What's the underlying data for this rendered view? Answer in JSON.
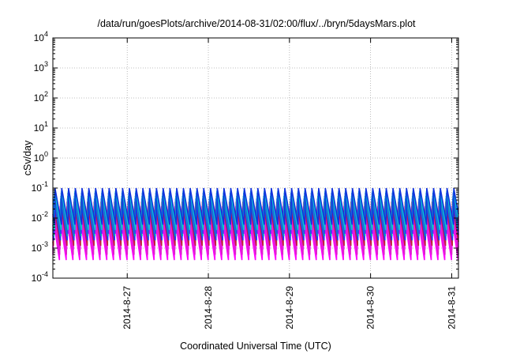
{
  "chart_data": {
    "type": "line",
    "title": "/data/run/goesPlots/archive/2014-08-31/02:00/flux/../bryn/5daysMars.plot",
    "xlabel": "Coordinated Universal Time (UTC)",
    "ylabel": "cSv/day",
    "yscale": "log",
    "ylim": [
      0.0001,
      10000
    ],
    "xlim": [
      "2014-08-26 02:00",
      "2014-08-31 02:00"
    ],
    "grid": true,
    "legend": "none",
    "y_ticks": [
      {
        "base": "10",
        "exp": "-4"
      },
      {
        "base": "10",
        "exp": "-3"
      },
      {
        "base": "10",
        "exp": "-2"
      },
      {
        "base": "10",
        "exp": "-1"
      },
      {
        "base": "10",
        "exp": "0"
      },
      {
        "base": "10",
        "exp": "1"
      },
      {
        "base": "10",
        "exp": "2"
      },
      {
        "base": "10",
        "exp": "3"
      },
      {
        "base": "10",
        "exp": "4"
      }
    ],
    "x_ticks": [
      "2014-8-27",
      "2014-8-28",
      "2014-8-29",
      "2014-8-30",
      "2014-8-31"
    ],
    "x_tick_times": [
      "2014-08-27 00:00",
      "2014-08-28 00:00",
      "2014-08-29 00:00",
      "2014-08-30 00:00",
      "2014-08-31 00:00"
    ],
    "sawtooth_period_hours": 2,
    "series": [
      {
        "color": "#ff00ff",
        "peak": 0.012,
        "trough": 0.0004
      },
      {
        "color": "#dd22cc",
        "peak": 0.018,
        "trough": 0.0006
      },
      {
        "color": "#ee11ee",
        "peak": 0.025,
        "trough": 0.0009
      },
      {
        "color": "#c0203a",
        "peak": 0.035,
        "trough": 0.0012
      },
      {
        "color": "#2233ff",
        "peak": 0.045,
        "trough": 0.0018
      },
      {
        "color": "#00aaaa",
        "peak": 0.055,
        "trough": 0.0025
      },
      {
        "color": "#3344ee",
        "peak": 0.07,
        "trough": 0.003
      },
      {
        "color": "#00cccc",
        "peak": 0.08,
        "trough": 0.004
      },
      {
        "color": "#1133dd",
        "peak": 0.1,
        "trough": 0.006
      }
    ]
  }
}
